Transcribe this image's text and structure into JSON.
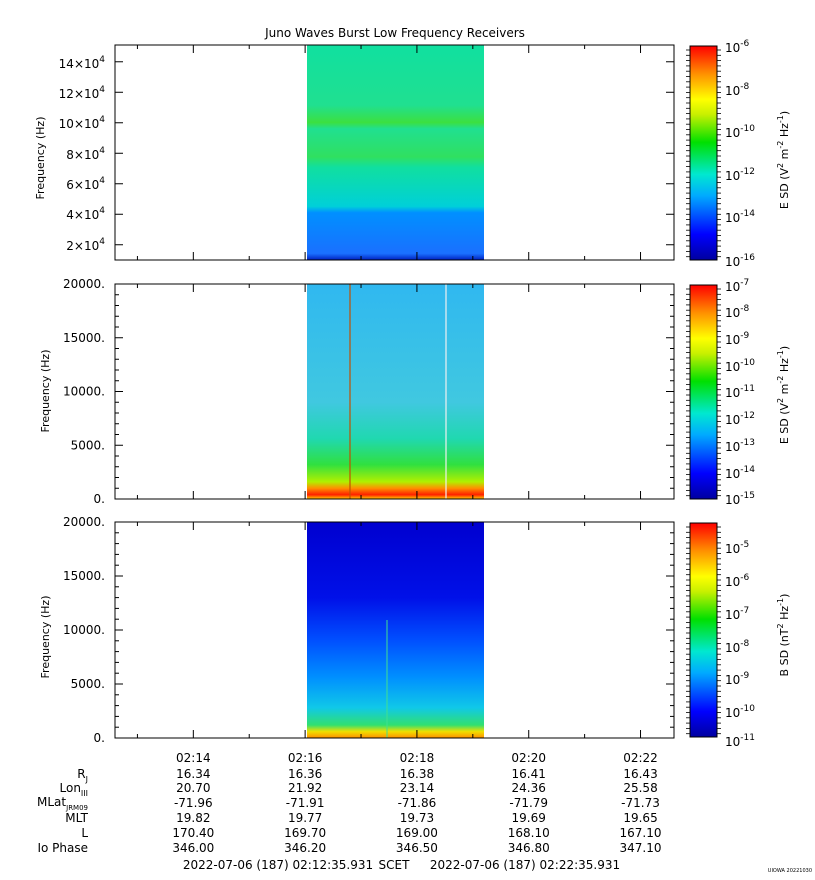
{
  "title": "Juno Waves Burst Low Frequency Receivers",
  "panels": [
    {
      "ylabel": "Frequency (Hz)",
      "ytick_labels": [
        "2×10^4",
        "4×10^4",
        "6×10^4",
        "8×10^4",
        "10×10^4",
        "12×10^4",
        "14×10^4"
      ],
      "ytick_values": [
        20000,
        40000,
        60000,
        80000,
        100000,
        120000,
        140000
      ],
      "ylim": [
        10000,
        151000
      ],
      "colorbar_label": "E SD (V^2 m^-2 Hz^-1)",
      "colorbar_ticks": [
        "10^-6",
        "10^-8",
        "10^-10",
        "10^-12",
        "10^-14",
        "10^-16"
      ],
      "colorbar_log_range": [
        -16,
        -6
      ]
    },
    {
      "ylabel": "Frequency (Hz)",
      "ytick_labels": [
        "0.",
        "5000.",
        "10000.",
        "15000.",
        "20000."
      ],
      "ytick_values": [
        0,
        5000,
        10000,
        15000,
        20000
      ],
      "ylim": [
        0,
        20000
      ],
      "colorbar_label": "E SD (V^2 m^-2 Hz^-1)",
      "colorbar_ticks": [
        "10^-7",
        "10^-8",
        "10^-9",
        "10^-10",
        "10^-11",
        "10^-12",
        "10^-13",
        "10^-14",
        "10^-15"
      ],
      "colorbar_log_range": [
        -15,
        -7
      ]
    },
    {
      "ylabel": "Frequency (Hz)",
      "ytick_labels": [
        "0.",
        "5000.",
        "10000.",
        "15000.",
        "20000."
      ],
      "ytick_values": [
        0,
        5000,
        10000,
        15000,
        20000
      ],
      "ylim": [
        0,
        20000
      ],
      "colorbar_label": "B SD (nT^2 Hz^-1)",
      "colorbar_ticks": [
        "10^-5",
        "10^-6",
        "10^-7",
        "10^-8",
        "10^-9",
        "10^-10",
        "10^-11"
      ],
      "colorbar_log_range": [
        -11,
        -4.5
      ]
    }
  ],
  "time_ticks": [
    "02:14",
    "02:16",
    "02:18",
    "02:20",
    "02:22"
  ],
  "ephemeris": [
    {
      "label": "R_J",
      "values": [
        "16.34",
        "16.36",
        "16.38",
        "16.41",
        "16.43"
      ]
    },
    {
      "label": "Lon_III",
      "values": [
        "20.70",
        "21.92",
        "23.14",
        "24.36",
        "25.58"
      ]
    },
    {
      "label": "MLat_JRM09",
      "values": [
        "-71.96",
        "-71.91",
        "-71.86",
        "-71.79",
        "-71.73"
      ]
    },
    {
      "label": "MLT",
      "values": [
        "19.82",
        "19.77",
        "19.73",
        "19.69",
        "19.65"
      ]
    },
    {
      "label": "L",
      "values": [
        "170.40",
        "169.70",
        "169.00",
        "168.10",
        "167.10"
      ]
    },
    {
      "label": "Io Phase",
      "values": [
        "346.00",
        "346.20",
        "346.50",
        "346.80",
        "347.10"
      ]
    }
  ],
  "footer": {
    "start": "2022-07-06 (187) 02:12:35.931",
    "scet": "SCET",
    "end": "2022-07-06 (187) 02:22:35.931"
  },
  "stamp": "UIOWA 20221030",
  "chart_data": [
    {
      "type": "heatmap",
      "title": "Juno Waves Burst Low Frequency Receivers",
      "x_range": [
        "02:12:35.931",
        "02:22:35.931"
      ],
      "data_interval": [
        "02:16:00",
        "02:19:10"
      ],
      "ylabel": "Frequency (Hz)",
      "ylim": [
        10000,
        151000
      ],
      "colorbar": {
        "label": "E SD (V^2 m^-2 Hz^-1)",
        "log10_range": [
          -16,
          -6
        ]
      },
      "features": [
        {
          "band_hz": [
            95000,
            100000
          ],
          "level": "10^-11"
        },
        {
          "band_hz": [
            68000,
            74000
          ],
          "level": "10^-11"
        },
        {
          "band_hz": [
            10000,
            45000
          ],
          "level": "10^-14"
        }
      ]
    },
    {
      "type": "heatmap",
      "x_range": [
        "02:12:35.931",
        "02:22:35.931"
      ],
      "data_interval": [
        "02:16:00",
        "02:19:10"
      ],
      "ylabel": "Frequency (Hz)",
      "ylim": [
        0,
        20000
      ],
      "colorbar": {
        "label": "E SD (V^2 m^-2 Hz^-1)",
        "log10_range": [
          -15,
          -7
        ]
      },
      "features": [
        {
          "band_hz": [
            0,
            1000
          ],
          "level": "10^-8"
        },
        {
          "band_hz": [
            1000,
            6000
          ],
          "level": "10^-11"
        }
      ]
    },
    {
      "type": "heatmap",
      "x_range": [
        "02:12:35.931",
        "02:22:35.931"
      ],
      "data_interval": [
        "02:16:00",
        "02:19:10"
      ],
      "ylabel": "Frequency (Hz)",
      "ylim": [
        0,
        20000
      ],
      "colorbar": {
        "label": "B SD (nT^2 Hz^-1)",
        "log10_range": [
          -11,
          -4.5
        ]
      },
      "features": [
        {
          "band_hz": [
            0,
            800
          ],
          "level": "10^-7"
        },
        {
          "band_hz": [
            800,
            8000
          ],
          "level": "10^-9"
        }
      ]
    }
  ]
}
